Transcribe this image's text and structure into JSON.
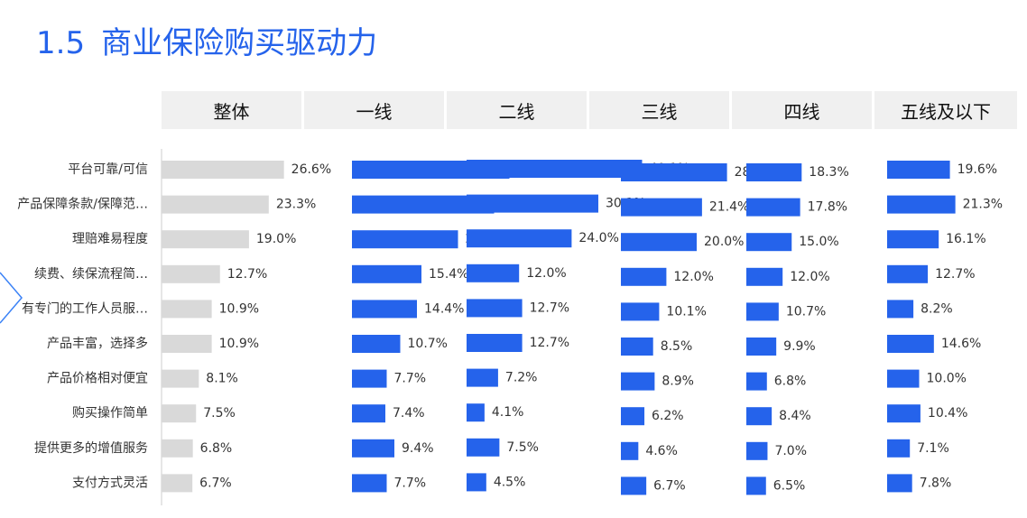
{
  "page": {
    "title_num": "1.5",
    "title_text": "商业保险购买驱动力",
    "bar_color_total": "#d9d9d9",
    "bar_color_tier": "#2563eb",
    "accent": "#2563eb"
  },
  "chart_data": {
    "type": "bar",
    "orientation": "horizontal",
    "unit": "%",
    "categories": [
      "平台可靠/可信",
      "产品保障条款/保障范…",
      "理赔难易程度",
      "续费、续保流程简…",
      "有专门的工作人员服…",
      "产品丰富，选择多",
      "产品价格相对便宜",
      "购买操作简单",
      "提供更多的增值服务",
      "支付方式灵活"
    ],
    "series": [
      {
        "name": "整体",
        "values": [
          26.6,
          23.3,
          19.0,
          12.7,
          10.9,
          10.9,
          8.1,
          7.5,
          6.8,
          6.7
        ]
      },
      {
        "name": "一线",
        "values": [
          34.9,
          31.5,
          23.5,
          15.4,
          14.4,
          10.7,
          7.7,
          7.4,
          9.4,
          7.7
        ]
      },
      {
        "name": "二线",
        "values": [
          40.1,
          30.1,
          24.0,
          12.0,
          12.7,
          12.7,
          7.2,
          4.1,
          7.5,
          4.5
        ]
      },
      {
        "name": "三线",
        "values": [
          28.0,
          21.4,
          20.0,
          12.0,
          10.1,
          8.5,
          8.9,
          6.2,
          4.6,
          6.7
        ]
      },
      {
        "name": "四线",
        "values": [
          18.3,
          17.8,
          15.0,
          12.0,
          10.7,
          9.9,
          6.8,
          8.4,
          7.0,
          6.5
        ]
      },
      {
        "name": "五线及以下",
        "values": [
          19.6,
          21.3,
          16.1,
          12.7,
          8.2,
          14.6,
          10.0,
          10.4,
          7.1,
          7.8
        ]
      }
    ]
  }
}
